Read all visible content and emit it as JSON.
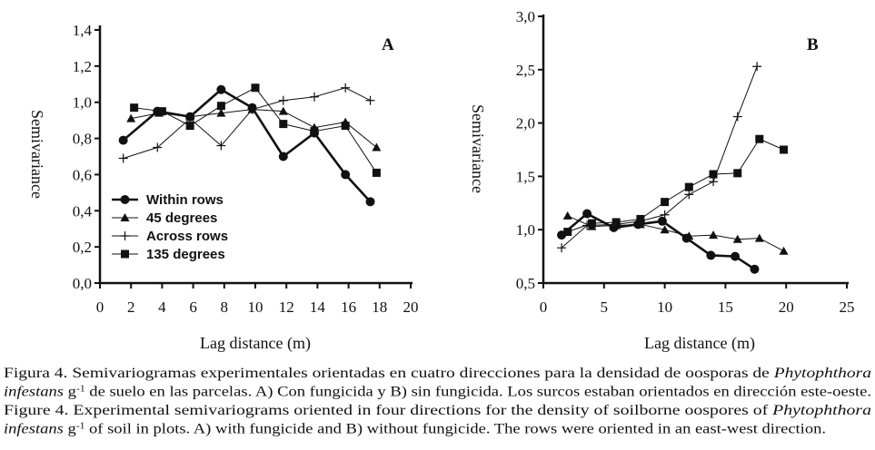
{
  "chart_data": [
    {
      "type": "line",
      "panel_label": "A",
      "xlabel": "Lag distance (m)",
      "ylabel": "Semivariance",
      "xlim": [
        0,
        20
      ],
      "ylim": [
        0,
        1.4
      ],
      "xticks": [
        "0",
        "2",
        "4",
        "6",
        "8",
        "10",
        "12",
        "14",
        "16",
        "18",
        "20"
      ],
      "yticks": [
        "0,0",
        "0,2",
        "0,4",
        "0,6",
        "0,8",
        "1,0",
        "1,2",
        "1,4"
      ],
      "grid": false,
      "legend_placement": "bottom-left",
      "series": [
        {
          "name": "Within rows",
          "marker": "circle",
          "line": "thick",
          "x": [
            1.5,
            3.7,
            5.8,
            7.8,
            9.8,
            11.8,
            13.8,
            15.8,
            17.4
          ],
          "y": [
            0.79,
            0.95,
            0.92,
            1.07,
            0.97,
            0.7,
            0.83,
            0.6,
            0.45
          ]
        },
        {
          "name": "45 degrees",
          "marker": "triangle",
          "line": "thin",
          "x": [
            2.0,
            3.8,
            5.8,
            7.8,
            9.8,
            11.8,
            13.8,
            15.8,
            17.8
          ],
          "y": [
            0.91,
            0.94,
            0.92,
            0.94,
            0.96,
            0.95,
            0.86,
            0.89,
            0.75
          ]
        },
        {
          "name": "Across rows",
          "marker": "plus",
          "line": "thin",
          "x": [
            1.5,
            3.7,
            5.8,
            7.8,
            9.8,
            11.8,
            13.8,
            15.8,
            17.4
          ],
          "y": [
            0.69,
            0.75,
            0.91,
            0.76,
            0.96,
            1.01,
            1.03,
            1.08,
            1.01
          ]
        },
        {
          "name": "135 degrees",
          "marker": "square",
          "line": "thin",
          "x": [
            2.2,
            4.0,
            5.8,
            7.8,
            10.0,
            11.8,
            13.8,
            15.8,
            17.8
          ],
          "y": [
            0.97,
            0.95,
            0.87,
            0.98,
            1.08,
            0.88,
            0.84,
            0.87,
            0.61
          ]
        }
      ]
    },
    {
      "type": "line",
      "panel_label": "B",
      "xlabel": "Lag distance (m)",
      "ylabel": "Semivariance",
      "xlim": [
        0,
        25
      ],
      "ylim": [
        0.5,
        3.0
      ],
      "xticks": [
        "0",
        "5",
        "10",
        "15",
        "20",
        "25"
      ],
      "yticks": [
        "0,5",
        "1,0",
        "1,5",
        "2,0",
        "2,5",
        "3,0"
      ],
      "grid": false,
      "series": [
        {
          "marker": "circle",
          "line": "thick",
          "x": [
            1.5,
            3.6,
            5.8,
            7.8,
            9.8,
            11.8,
            13.8,
            15.8,
            17.4
          ],
          "y": [
            0.95,
            1.15,
            1.02,
            1.05,
            1.08,
            0.92,
            0.76,
            0.75,
            0.63
          ]
        },
        {
          "marker": "triangle",
          "line": "thin",
          "x": [
            2.0,
            4.0,
            6.0,
            8.0,
            10.0,
            12.0,
            14.0,
            16.0,
            17.8,
            19.8
          ],
          "y": [
            1.13,
            1.03,
            1.04,
            1.05,
            1.0,
            0.94,
            0.95,
            0.91,
            0.92,
            0.8
          ]
        },
        {
          "marker": "plus",
          "line": "thin",
          "x": [
            1.5,
            3.6,
            6.0,
            8.0,
            10.0,
            12.0,
            14.0,
            16.0,
            17.6
          ],
          "y": [
            0.83,
            1.04,
            1.05,
            1.08,
            1.14,
            1.33,
            1.45,
            2.06,
            2.53
          ]
        },
        {
          "marker": "square",
          "line": "thin",
          "x": [
            2.0,
            4.0,
            6.0,
            8.0,
            10.0,
            12.0,
            14.0,
            16.0,
            17.8,
            19.8
          ],
          "y": [
            0.98,
            1.06,
            1.07,
            1.1,
            1.26,
            1.4,
            1.52,
            1.53,
            1.85,
            1.75
          ]
        }
      ]
    }
  ],
  "caption": {
    "lines": [
      [
        {
          "t": "Figura 4. Semivariogramas experimentales orientadas en cuatro direcciones para la densidad de oosporas de "
        },
        {
          "t": "Phytophthora",
          "i": true
        }
      ],
      [
        {
          "t": "infestans",
          "i": true
        },
        {
          "t": " g"
        },
        {
          "t": "-1",
          "sup": true
        },
        {
          "t": " de suelo en las parcelas. A) Con fungicida y B) sin fungicida. Los surcos estaban orientados en dirección este-oeste."
        }
      ],
      [
        {
          "t": "Figure 4. Experimental semivariograms oriented in four directions for the density of soilborne oospores of "
        },
        {
          "t": "Phytophthora",
          "i": true
        }
      ],
      [
        {
          "t": "infestans",
          "i": true
        },
        {
          "t": " g"
        },
        {
          "t": "-1",
          "sup": true
        },
        {
          "t": " of soil in plots. A) with fungicide and B) without fungicide. The rows were oriented in an east-west direction."
        }
      ]
    ]
  }
}
